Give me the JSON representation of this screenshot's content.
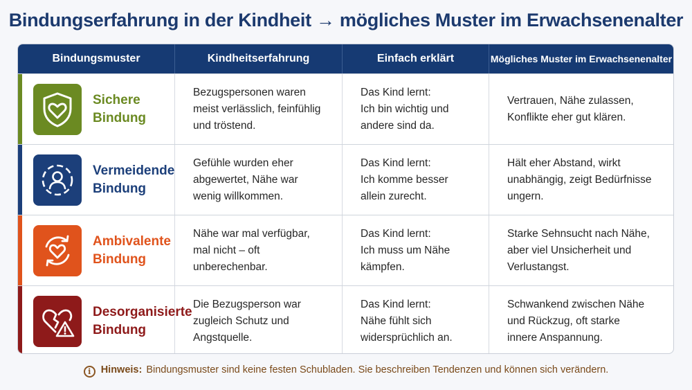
{
  "title": "Bindungserfahrung in der Kindheit → mögliches Muster im Erwachsenenalter",
  "columns": [
    "Bindungsmuster",
    "Kindheitserfahrung",
    "Einfach erklärt",
    "Mögliches Muster im Erwachsenenalter"
  ],
  "rows": [
    {
      "type_lines": [
        "Sichere",
        "Bindung"
      ],
      "icon": "shield-heart-icon",
      "color": "#6b8a22",
      "childhood": [
        "Bezugspersonen waren",
        "meist verlässlich, feinfühlig",
        "und tröstend."
      ],
      "explained": [
        "Das Kind lernt:",
        "Ich bin wichtig und",
        "andere sind da."
      ],
      "adult": [
        "Vertrauen, Nähe zulassen,",
        "Konflikte eher gut klären."
      ]
    },
    {
      "type_lines": [
        "Vermeidende",
        "Bindung"
      ],
      "icon": "person-circle-icon",
      "color": "#1c3f7a",
      "childhood": [
        "Gefühle wurden eher",
        "abgewertet, Nähe war",
        "wenig willkommen."
      ],
      "explained": [
        "Das Kind lernt:",
        "Ich komme besser",
        "allein zurecht."
      ],
      "adult": [
        "Hält eher Abstand, wirkt",
        "unabhängig, zeigt Bedürfnisse",
        "ungern."
      ]
    },
    {
      "type_lines": [
        "Ambivalente",
        "Bindung"
      ],
      "icon": "heart-cycle-icon",
      "color": "#e0531c",
      "childhood": [
        "Nähe war mal verfügbar,",
        "mal nicht – oft",
        "unberechenbar."
      ],
      "explained": [
        "Das Kind lernt:",
        "Ich muss um Nähe",
        "kämpfen."
      ],
      "adult": [
        "Starke Sehnsucht nach Nähe,",
        "aber viel Unsicherheit und",
        "Verlustangst."
      ]
    },
    {
      "type_lines": [
        "Desorganisierte",
        "Bindung"
      ],
      "icon": "broken-heart-warning-icon",
      "color": "#8e1a1a",
      "childhood": [
        "Die Bezugsperson war",
        "zugleich Schutz und",
        "Angstquelle."
      ],
      "explained": [
        "Das Kind lernt:",
        "Nähe fühlt sich",
        "widersprüchlich an."
      ],
      "adult": [
        "Schwankend zwischen Nähe",
        "und Rückzug, oft starke",
        "innere Anspannung."
      ]
    }
  ],
  "hint": {
    "icon": "info-icon",
    "symbol": "i",
    "label": "Hinweis:",
    "text": "Bindungsmuster sind keine festen Schubladen. Sie beschreiben Tendenzen und können sich verändern."
  }
}
